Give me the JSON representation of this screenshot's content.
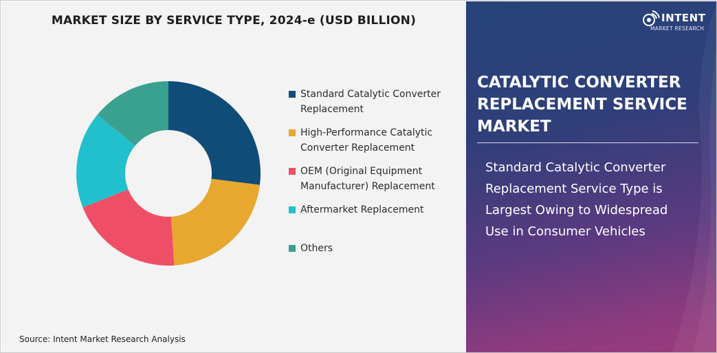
{
  "header": {
    "chart_title": "MARKET SIZE BY SERVICE TYPE, 2024-e (USD BILLION)"
  },
  "chart_data": {
    "type": "pie",
    "title": "MARKET SIZE BY SERVICE TYPE, 2024-e (USD BILLION)",
    "donut": true,
    "legend_position": "right",
    "categories": [
      "Standard Catalytic Converter Replacement",
      "High-Performance Catalytic Converter Replacement",
      "OEM (Original Equipment Manufacturer) Replacement",
      "Aftermarket Replacement",
      "Others"
    ],
    "values": [
      27,
      22,
      20,
      17,
      14
    ],
    "colors": [
      "#0f4c78",
      "#e8a72f",
      "#ef4f66",
      "#22bfcc",
      "#3aa191"
    ],
    "legend": [
      {
        "line1": "Standard Catalytic Converter",
        "line2": "Replacement"
      },
      {
        "line1": "High-Performance Catalytic",
        "line2": "Converter Replacement"
      },
      {
        "line1": "OEM (Original Equipment",
        "line2": "Manufacturer) Replacement"
      },
      {
        "line1": "Aftermarket Replacement",
        "line2": ""
      },
      {
        "line1": "Others",
        "line2": ""
      }
    ]
  },
  "footer": {
    "source": "Source: Intent Market Research Analysis"
  },
  "brand": {
    "logo_name": "INTENT",
    "logo_sub": "MARKET RESEARCH",
    "logo_icon": "signal-globe-icon"
  },
  "panel": {
    "market_title_lines": [
      "CATALYTIC CONVERTER",
      "REPLACEMENT SERVICE",
      "MARKET"
    ],
    "highlight_lines": [
      "Standard Catalytic Converter",
      "Replacement Service Type is",
      "Largest Owing to Widespread",
      "Use in Consumer Vehicles"
    ]
  }
}
